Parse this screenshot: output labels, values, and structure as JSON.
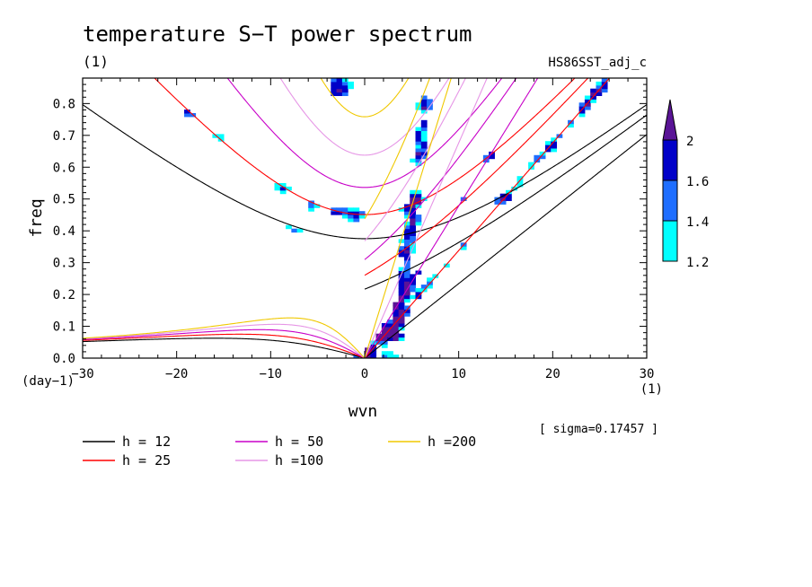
{
  "chart_data": {
    "type": "contour",
    "title": "temperature S−T power spectrum",
    "subtitle_left": "(1)",
    "subtitle_right": "HS86SST_adj_c",
    "xlabel": "wvn",
    "x_unit_label": "(1)",
    "ylabel": "freq",
    "y_unit_label": "(day−1)",
    "xlim": [
      -30,
      30
    ],
    "ylim": [
      0,
      0.88
    ],
    "x_ticks": [
      -30,
      -20,
      -10,
      0,
      10,
      20,
      30
    ],
    "x_tick_labels": [
      "−30",
      "−20",
      "−10",
      "0",
      "10",
      "20",
      "30"
    ],
    "y_ticks": [
      0.0,
      0.1,
      0.2,
      0.3,
      0.4,
      0.5,
      0.6,
      0.7,
      0.8
    ],
    "y_tick_labels": [
      "0.0",
      "0.1",
      "0.2",
      "0.3",
      "0.4",
      "0.5",
      "0.6",
      "0.7",
      "0.8"
    ],
    "sigma_note": "[ sigma=0.17457 ]",
    "shading_levels": [
      {
        "from": 1.2,
        "to": 1.4,
        "color": "#00ffff"
      },
      {
        "from": 1.4,
        "to": 1.6,
        "color": "#1e6eff"
      },
      {
        "from": 1.6,
        "to": 2.0,
        "color": "#0000c8"
      },
      {
        "from": 2.0,
        "to": null,
        "color": "#5a1496"
      }
    ],
    "colorbar_labels": [
      "1.2",
      "1.4",
      "1.6",
      "2"
    ],
    "dispersion_curves": [
      {
        "name": "h = 12",
        "h": 12,
        "color": "#000000"
      },
      {
        "name": "h = 25",
        "h": 25,
        "color": "#ff0000"
      },
      {
        "name": "h = 50",
        "h": 50,
        "color": "#c800c8"
      },
      {
        "name": "h =100",
        "h": 100,
        "color": "#e696e6"
      },
      {
        "name": "h =200",
        "h": 200,
        "color": "#f0c800"
      }
    ],
    "grid": false
  }
}
